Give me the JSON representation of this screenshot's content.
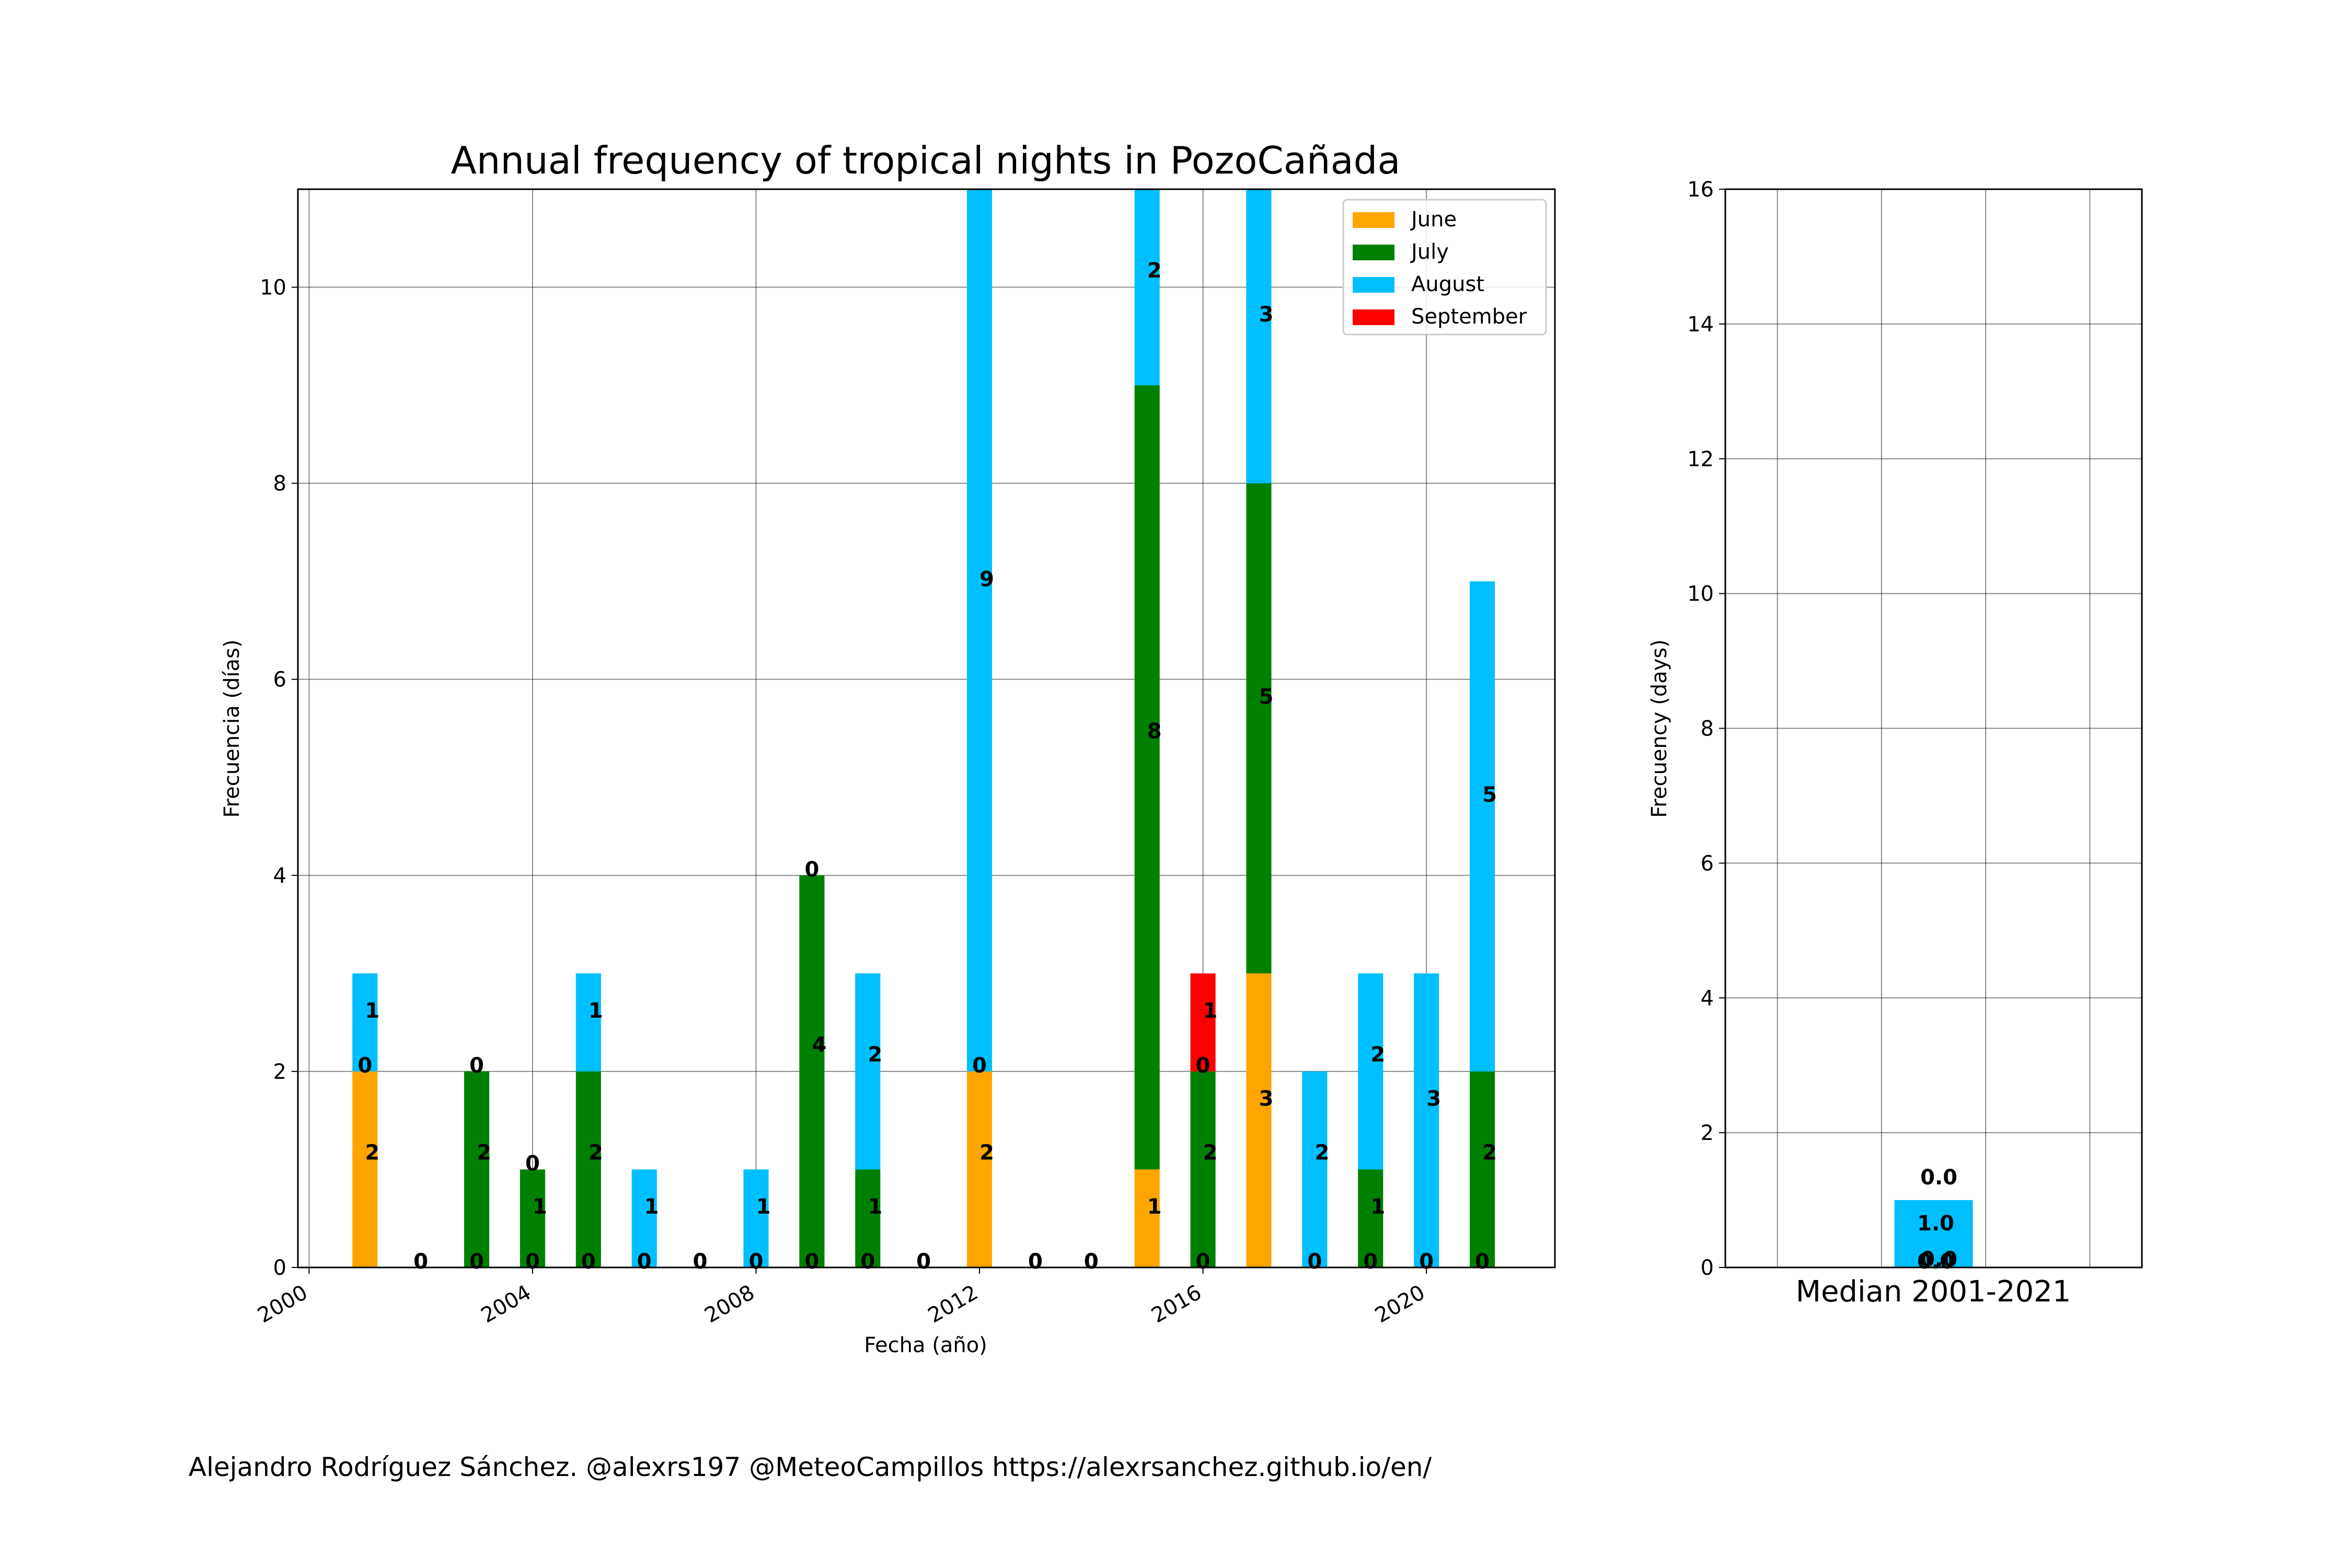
{
  "credits": "Alejandro Rodríguez Sánchez. @alexrs197 @MeteoCampillos   https://alexrsanchez.github.io/en/",
  "chart_data": [
    {
      "type": "bar",
      "stacked": true,
      "title": "Annual frequency of tropical nights in PozoCañada",
      "xlabel": "Fecha (año)",
      "ylabel": "Frecuencia (días)",
      "xlim": [
        1999.8,
        2022.3
      ],
      "ylim": [
        0,
        11
      ],
      "xticks": [
        "2000",
        "2004",
        "2008",
        "2012",
        "2016",
        "2020"
      ],
      "yticks": [
        "0",
        "2",
        "4",
        "6",
        "8",
        "10"
      ],
      "grid": true,
      "legend": "top-right",
      "x": [
        2001,
        2002,
        2003,
        2004,
        2005,
        2006,
        2007,
        2008,
        2009,
        2010,
        2011,
        2012,
        2013,
        2014,
        2015,
        2016,
        2017,
        2018,
        2019,
        2020,
        2021
      ],
      "series": [
        {
          "name": "June",
          "color": "#ffa500",
          "values": [
            2,
            0,
            0,
            0,
            0,
            0,
            0,
            0,
            0,
            0,
            0,
            2,
            0,
            0,
            1,
            0,
            3,
            0,
            0,
            0,
            0
          ]
        },
        {
          "name": "July",
          "color": "#008000",
          "values": [
            0,
            0,
            2,
            1,
            2,
            0,
            0,
            0,
            4,
            1,
            0,
            0,
            0,
            0,
            8,
            2,
            5,
            0,
            1,
            0,
            2
          ]
        },
        {
          "name": "August",
          "color": "#00bfff",
          "values": [
            1,
            0,
            0,
            0,
            1,
            1,
            0,
            1,
            0,
            2,
            0,
            9,
            0,
            0,
            2,
            0,
            3,
            2,
            2,
            3,
            5
          ]
        },
        {
          "name": "September",
          "color": "#ff0000",
          "values": [
            0,
            0,
            0,
            0,
            0,
            0,
            0,
            0,
            0,
            0,
            0,
            0,
            0,
            0,
            0,
            1,
            0,
            0,
            0,
            0,
            0
          ]
        }
      ]
    },
    {
      "type": "bar",
      "stacked": true,
      "title": "",
      "xlabel": "Median 2001-2021",
      "ylabel": "Frecuency (days)",
      "ylim": [
        0,
        16
      ],
      "yticks": [
        "0",
        "2",
        "4",
        "6",
        "8",
        "10",
        "12",
        "14",
        "16"
      ],
      "grid": true,
      "series": [
        {
          "name": "June",
          "color": "#ffa500",
          "values": [
            0.0
          ]
        },
        {
          "name": "July",
          "color": "#008000",
          "values": [
            0.0
          ]
        },
        {
          "name": "August",
          "color": "#00bfff",
          "values": [
            1.0
          ]
        },
        {
          "name": "September",
          "color": "#ff0000",
          "values": [
            0.0
          ]
        }
      ]
    }
  ]
}
